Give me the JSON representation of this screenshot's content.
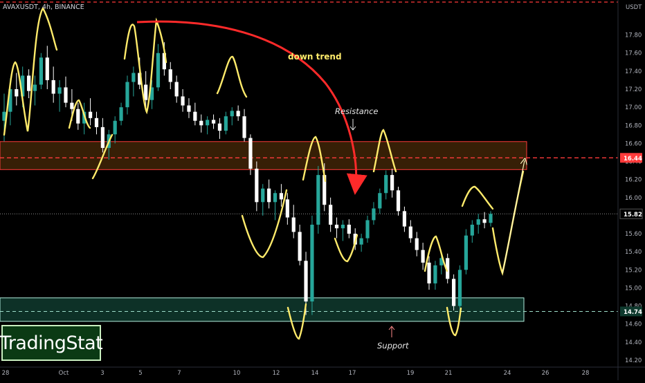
{
  "header": {
    "symbol": "AVAXUSDT, 4h, BINANCE",
    "currency": "USDT"
  },
  "branding": {
    "name": "TradingStat"
  },
  "colors": {
    "background": "#000000",
    "up_candle": "#26a69a",
    "down_candle": "#ffffff",
    "resistance_zone": "#4a2a08",
    "resistance_border": "#ff3b3b",
    "support_zone": "#0f3a2e",
    "support_border": "#b4f0e0",
    "annotation_yellow": "#ffeb6b",
    "trend_arrow": "#ff2a2a",
    "dashed_level": "#ff3b3b"
  },
  "chart_data": {
    "type": "candlestick",
    "x_tick_labels": [
      "28",
      "Oct",
      "3",
      "5",
      "7",
      "10",
      "12",
      "14",
      "17",
      "19",
      "21",
      "24",
      "26",
      "28"
    ],
    "y_tick_labels": [
      "17.80",
      "17.60",
      "17.40",
      "17.20",
      "17.00",
      "16.80",
      "16.60",
      "16.40",
      "16.20",
      "16.00",
      "15.80",
      "15.60",
      "15.40",
      "15.20",
      "15.00",
      "14.80",
      "14.60",
      "14.40",
      "14.20"
    ],
    "ylim": [
      14.2,
      17.95
    ],
    "price_tags": [
      {
        "value": 16.44,
        "label": "16.44"
      },
      {
        "value": 15.82,
        "label": "15.82"
      },
      {
        "value": 14.74,
        "label": "14.74"
      }
    ],
    "levels": [
      {
        "name": "resistance",
        "low": 16.31,
        "high": 16.62,
        "label": "Resistance"
      },
      {
        "name": "support",
        "low": 14.63,
        "high": 14.89,
        "label": "Support"
      }
    ],
    "annotations": [
      {
        "text": "down trend"
      },
      {
        "text": "Resistance"
      },
      {
        "text": "Support"
      }
    ],
    "candles": [
      [
        16.85,
        17.15,
        16.62,
        16.95
      ],
      [
        16.95,
        17.32,
        16.8,
        17.2
      ],
      [
        17.2,
        17.38,
        17.02,
        17.12
      ],
      [
        17.12,
        17.45,
        17.0,
        17.35
      ],
      [
        17.35,
        17.42,
        17.1,
        17.18
      ],
      [
        17.18,
        17.35,
        17.02,
        17.25
      ],
      [
        17.25,
        17.6,
        17.2,
        17.55
      ],
      [
        17.55,
        17.68,
        17.2,
        17.3
      ],
      [
        17.3,
        17.45,
        17.05,
        17.15
      ],
      [
        17.15,
        17.3,
        16.95,
        17.22
      ],
      [
        17.22,
        17.34,
        17.0,
        17.05
      ],
      [
        17.05,
        17.2,
        16.85,
        16.98
      ],
      [
        16.98,
        17.05,
        16.75,
        16.82
      ],
      [
        16.82,
        17.05,
        16.7,
        16.95
      ],
      [
        16.95,
        17.1,
        16.8,
        16.88
      ],
      [
        16.88,
        16.95,
        16.7,
        16.78
      ],
      [
        16.78,
        16.88,
        16.5,
        16.55
      ],
      [
        16.55,
        16.75,
        16.42,
        16.7
      ],
      [
        16.7,
        16.9,
        16.6,
        16.85
      ],
      [
        16.85,
        17.05,
        16.8,
        17.0
      ],
      [
        17.0,
        17.35,
        16.92,
        17.28
      ],
      [
        17.28,
        17.45,
        17.12,
        17.38
      ],
      [
        17.38,
        17.55,
        17.2,
        17.25
      ],
      [
        17.25,
        17.4,
        17.0,
        17.08
      ],
      [
        17.08,
        17.3,
        16.98,
        17.22
      ],
      [
        17.22,
        17.7,
        17.18,
        17.6
      ],
      [
        17.6,
        17.72,
        17.35,
        17.42
      ],
      [
        17.42,
        17.5,
        17.2,
        17.28
      ],
      [
        17.28,
        17.35,
        17.05,
        17.12
      ],
      [
        17.12,
        17.2,
        16.95,
        17.02
      ],
      [
        17.02,
        17.1,
        16.88,
        16.95
      ],
      [
        16.95,
        17.05,
        16.8,
        16.85
      ],
      [
        16.85,
        16.92,
        16.72,
        16.8
      ],
      [
        16.8,
        16.9,
        16.7,
        16.86
      ],
      [
        16.86,
        16.92,
        16.76,
        16.82
      ],
      [
        16.82,
        16.88,
        16.65,
        16.74
      ],
      [
        16.74,
        16.95,
        16.7,
        16.9
      ],
      [
        16.9,
        17.0,
        16.8,
        16.96
      ],
      [
        16.96,
        17.02,
        16.85,
        16.9
      ],
      [
        16.9,
        16.98,
        16.62,
        16.66
      ],
      [
        16.66,
        16.7,
        16.25,
        16.32
      ],
      [
        16.32,
        16.4,
        15.85,
        15.95
      ],
      [
        15.95,
        16.15,
        15.8,
        16.1
      ],
      [
        16.1,
        16.2,
        15.88,
        15.95
      ],
      [
        15.95,
        16.08,
        15.75,
        16.05
      ],
      [
        16.05,
        16.15,
        15.9,
        15.98
      ],
      [
        15.98,
        16.05,
        15.7,
        15.78
      ],
      [
        15.78,
        15.92,
        15.55,
        15.62
      ],
      [
        15.62,
        15.7,
        15.25,
        15.3
      ],
      [
        15.3,
        15.4,
        14.7,
        14.85
      ],
      [
        14.85,
        15.8,
        14.7,
        15.7
      ],
      [
        15.7,
        16.35,
        15.6,
        16.25
      ],
      [
        16.25,
        16.38,
        15.85,
        15.92
      ],
      [
        15.92,
        16.0,
        15.62,
        15.7
      ],
      [
        15.7,
        15.78,
        15.55,
        15.66
      ],
      [
        15.66,
        15.75,
        15.52,
        15.7
      ],
      [
        15.7,
        15.76,
        15.55,
        15.6
      ],
      [
        15.6,
        15.66,
        15.42,
        15.48
      ],
      [
        15.48,
        15.6,
        15.4,
        15.55
      ],
      [
        15.55,
        15.8,
        15.5,
        15.75
      ],
      [
        15.75,
        15.95,
        15.7,
        15.88
      ],
      [
        15.88,
        16.1,
        15.82,
        16.05
      ],
      [
        16.05,
        16.3,
        15.98,
        16.25
      ],
      [
        16.25,
        16.32,
        16.0,
        16.08
      ],
      [
        16.08,
        16.12,
        15.8,
        15.85
      ],
      [
        15.85,
        15.9,
        15.62,
        15.68
      ],
      [
        15.68,
        15.75,
        15.5,
        15.55
      ],
      [
        15.55,
        15.62,
        15.35,
        15.42
      ],
      [
        15.42,
        15.5,
        15.2,
        15.28
      ],
      [
        15.28,
        15.35,
        14.98,
        15.05
      ],
      [
        15.05,
        15.3,
        14.98,
        15.25
      ],
      [
        15.25,
        15.4,
        15.15,
        15.33
      ],
      [
        15.33,
        15.38,
        15.05,
        15.1
      ],
      [
        15.1,
        15.15,
        14.75,
        14.8
      ],
      [
        14.8,
        15.25,
        14.72,
        15.2
      ],
      [
        15.2,
        15.65,
        15.15,
        15.58
      ],
      [
        15.58,
        15.75,
        15.5,
        15.7
      ],
      [
        15.7,
        15.82,
        15.6,
        15.76
      ],
      [
        15.76,
        15.84,
        15.66,
        15.72
      ],
      [
        15.72,
        15.85,
        15.68,
        15.82
      ]
    ]
  }
}
